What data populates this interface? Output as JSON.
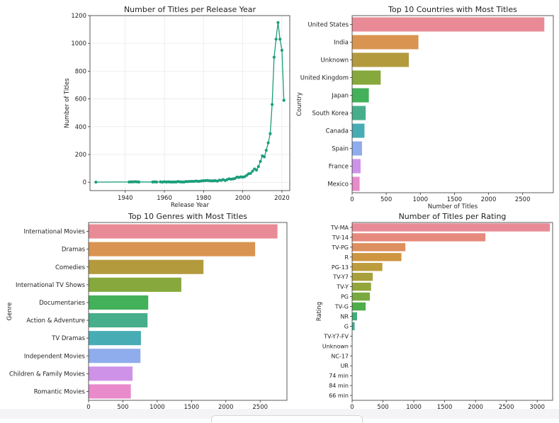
{
  "charts": {
    "release_year": {
      "title": "Number of Titles per Release Year",
      "xlabel": "Release Year",
      "ylabel": "Number of Titles",
      "xticks": [
        "1940",
        "1960",
        "1980",
        "2000",
        "2020"
      ],
      "yticks": [
        "0",
        "200",
        "400",
        "600",
        "800",
        "1000",
        "1200"
      ]
    },
    "countries": {
      "title": "Top 10 Countries with Most Titles",
      "xlabel": "Number of Titles",
      "ylabel": "Country",
      "xticks": [
        "0",
        "500",
        "1000",
        "1500",
        "2000",
        "2500"
      ]
    },
    "genres": {
      "title": "Top 10 Genres with Most Titles",
      "xlabel": "",
      "ylabel": "Genre",
      "xticks": [
        "0",
        "500",
        "1000",
        "1500",
        "2000",
        "2500"
      ]
    },
    "ratings": {
      "title": "Number of Titles per Rating",
      "xlabel": "",
      "ylabel": "Rating",
      "xticks": [
        "0",
        "500",
        "1000",
        "1500",
        "2000",
        "2500",
        "3000"
      ]
    }
  },
  "chart_data": [
    {
      "type": "line",
      "title": "Number of Titles per Release Year",
      "xlabel": "Release Year",
      "ylabel": "Number of Titles",
      "xlim": [
        1922,
        2024
      ],
      "ylim": [
        -60,
        1200
      ],
      "grid": true,
      "color": "#1a9e7a",
      "x": [
        1925,
        1942,
        1943,
        1944,
        1945,
        1946,
        1947,
        1954,
        1955,
        1956,
        1958,
        1959,
        1960,
        1961,
        1962,
        1963,
        1964,
        1965,
        1966,
        1967,
        1968,
        1969,
        1970,
        1971,
        1972,
        1973,
        1974,
        1975,
        1976,
        1977,
        1978,
        1979,
        1980,
        1981,
        1982,
        1983,
        1984,
        1985,
        1986,
        1987,
        1988,
        1989,
        1990,
        1991,
        1992,
        1993,
        1994,
        1995,
        1996,
        1997,
        1998,
        1999,
        2000,
        2001,
        2002,
        2003,
        2004,
        2005,
        2006,
        2007,
        2008,
        2009,
        2010,
        2011,
        2012,
        2013,
        2014,
        2015,
        2016,
        2017,
        2018,
        2019,
        2020,
        2021
      ],
      "values": [
        1,
        2,
        3,
        3,
        4,
        3,
        2,
        2,
        3,
        2,
        3,
        1,
        4,
        2,
        3,
        2,
        2,
        2,
        2,
        5,
        3,
        2,
        2,
        5,
        5,
        6,
        7,
        6,
        9,
        7,
        7,
        10,
        11,
        12,
        13,
        11,
        10,
        10,
        12,
        8,
        15,
        14,
        19,
        13,
        19,
        25,
        22,
        24,
        27,
        37,
        35,
        39,
        37,
        40,
        50,
        61,
        64,
        80,
        96,
        88,
        113,
        150,
        190,
        183,
        230,
        284,
        350,
        560,
        900,
        1030,
        1150,
        1030,
        950,
        590
      ]
    },
    {
      "type": "bar",
      "orientation": "horizontal",
      "title": "Top 10 Countries with Most Titles",
      "xlabel": "Number of Titles",
      "ylabel": "Country",
      "xlim": [
        0,
        2950
      ],
      "categories": [
        "United States",
        "India",
        "Unknown",
        "United Kingdom",
        "Japan",
        "South Korea",
        "Canada",
        "Spain",
        "France",
        "Mexico"
      ],
      "values": [
        2818,
        972,
        831,
        419,
        245,
        199,
        181,
        145,
        124,
        110
      ],
      "colors": [
        "#e88b96",
        "#d99451",
        "#b39a3d",
        "#86a83c",
        "#43b05a",
        "#46ae8a",
        "#48acb5",
        "#8facec",
        "#cf92e9",
        "#e98bcb"
      ]
    },
    {
      "type": "bar",
      "orientation": "horizontal",
      "title": "Top 10 Genres with Most Titles",
      "xlabel": "",
      "ylabel": "Genre",
      "xlim": [
        0,
        2890
      ],
      "categories": [
        "International Movies",
        "Dramas",
        "Comedies",
        "International TV Shows",
        "Documentaries",
        "Action & Adventure",
        "TV Dramas",
        "Independent Movies",
        "Children & Family Movies",
        "Romantic Movies"
      ],
      "values": [
        2752,
        2427,
        1674,
        1351,
        869,
        859,
        763,
        756,
        641,
        616
      ],
      "colors": [
        "#e88b96",
        "#d99451",
        "#b39a3d",
        "#86a83c",
        "#43b05a",
        "#46ae8a",
        "#48acb5",
        "#8facec",
        "#cf92e9",
        "#e98bcb"
      ]
    },
    {
      "type": "bar",
      "orientation": "horizontal",
      "title": "Number of Titles per Rating",
      "xlabel": "",
      "ylabel": "Rating",
      "xlim": [
        0,
        3250
      ],
      "categories": [
        "TV-MA",
        "TV-14",
        "TV-PG",
        "R",
        "PG-13",
        "TV-Y7",
        "TV-Y",
        "PG",
        "TV-G",
        "NR",
        "G",
        "TV-Y7-FV",
        "Unknown",
        "NC-17",
        "UR",
        "74 min",
        "84 min",
        "66 min"
      ],
      "values": [
        3207,
        2160,
        863,
        799,
        490,
        334,
        307,
        287,
        220,
        80,
        41,
        6,
        4,
        3,
        3,
        1,
        1,
        1
      ],
      "colors": [
        "#e88b96",
        "#e68a7d",
        "#de8f5f",
        "#cf9641",
        "#bc9c3b",
        "#a8a13b",
        "#93a63c",
        "#79a93f",
        "#4eae4a",
        "#3fb076",
        "#43ae93",
        "#45ada4",
        "#47acb2",
        "#4daac3",
        "#76a7de",
        "#a19bee",
        "#c991e9",
        "#e38bd3"
      ]
    }
  ]
}
